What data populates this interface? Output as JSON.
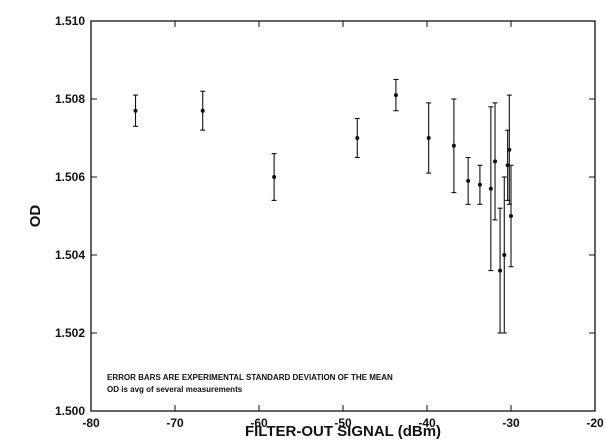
{
  "chart_data": {
    "type": "scatter",
    "title": "",
    "xlabel": "FILTER-OUT SIGNAL (dBm)",
    "ylabel": "OD",
    "xlim": [
      -80,
      -20
    ],
    "ylim": [
      1.5,
      1.51
    ],
    "x_ticks": [
      -80,
      -70,
      -60,
      -50,
      -40,
      -30,
      -20
    ],
    "y_ticks": [
      1.5,
      1.502,
      1.504,
      1.506,
      1.508,
      1.51
    ],
    "x_tick_labels": [
      "-80",
      "-70",
      "-60",
      "-50",
      "-40",
      "-30",
      "-20"
    ],
    "y_tick_labels": [
      "1.500",
      "1.502",
      "1.504",
      "1.506",
      "1.508",
      "1.510"
    ],
    "grid": false,
    "legend": "none",
    "error_bars": true,
    "annotations": [
      "ERROR BARS ARE EXPERIMENTAL STANDARD DEVIATION OF THE MEAN",
      "OD is avg of several measurements"
    ],
    "points": [
      {
        "x": -74.7,
        "y": 1.5077,
        "err": 0.0004
      },
      {
        "x": -66.7,
        "y": 1.5077,
        "err": 0.0005
      },
      {
        "x": -58.2,
        "y": 1.506,
        "err": 0.0006
      },
      {
        "x": -48.3,
        "y": 1.507,
        "err": 0.0005
      },
      {
        "x": -43.7,
        "y": 1.5081,
        "err": 0.0004
      },
      {
        "x": -39.8,
        "y": 1.507,
        "err": 0.0009
      },
      {
        "x": -36.8,
        "y": 1.5068,
        "err": 0.0012
      },
      {
        "x": -35.1,
        "y": 1.5059,
        "err": 0.0006
      },
      {
        "x": -33.7,
        "y": 1.5058,
        "err": 0.0005
      },
      {
        "x": -32.4,
        "y": 1.5057,
        "err": 0.0021
      },
      {
        "x": -31.9,
        "y": 1.5064,
        "err": 0.0015
      },
      {
        "x": -31.3,
        "y": 1.5036,
        "err": 0.0016
      },
      {
        "x": -30.8,
        "y": 1.504,
        "err": 0.002
      },
      {
        "x": -30.4,
        "y": 1.5063,
        "err": 0.0009
      },
      {
        "x": -30.2,
        "y": 1.5067,
        "err": 0.0014
      },
      {
        "x": -30.0,
        "y": 1.505,
        "err": 0.0013
      }
    ]
  },
  "colors": {
    "ink": "#111111",
    "background": "#ffffff"
  }
}
